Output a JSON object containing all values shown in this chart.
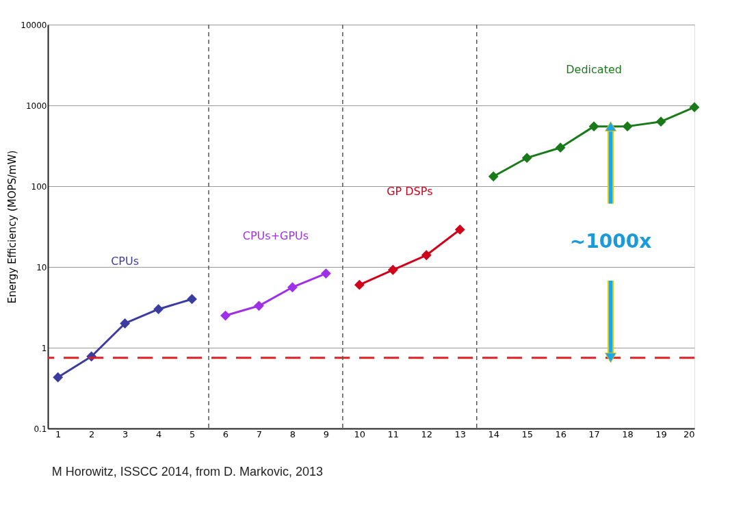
{
  "chart_data": {
    "type": "line",
    "ylabel": "Energy Efficiency (MOPS/mW)",
    "series": [
      {
        "name": "CPUs",
        "color": "#3c3ca0",
        "x": [
          1,
          2,
          3,
          4,
          5
        ],
        "values": [
          0.43,
          0.78,
          2,
          3,
          4
        ]
      },
      {
        "name": "CPUs+GPUs",
        "color": "#a030e8",
        "x": [
          6,
          7,
          8,
          9
        ],
        "values": [
          2.5,
          3.3,
          5.6,
          8.3
        ]
      },
      {
        "name": "GP DSPs",
        "color": "#d0021b",
        "x": [
          10,
          11,
          12,
          13
        ],
        "values": [
          6,
          9.2,
          14,
          29
        ]
      },
      {
        "name": "Dedicated",
        "color": "#1a7a1a",
        "x": [
          14,
          15,
          16,
          17,
          18,
          19,
          20
        ],
        "values": [
          132,
          224,
          300,
          550,
          550,
          630,
          950
        ]
      }
    ],
    "xlim": [
      0.7,
      20
    ],
    "xticks": [
      1,
      2,
      3,
      4,
      5,
      6,
      7,
      8,
      9,
      10,
      11,
      12,
      13,
      14,
      15,
      16,
      17,
      18,
      19,
      20
    ],
    "ylim": [
      0.1,
      10000
    ],
    "yticks": [
      0.1,
      1,
      10,
      100,
      1000,
      10000
    ],
    "log": "y",
    "grid": "y",
    "marker": "diamond",
    "line_style": "solid",
    "ref_lines": [
      {
        "axis": "y",
        "value": 0.75,
        "color": "#e02020",
        "line_style": "dashed"
      },
      {
        "axis": "x",
        "value": 5.5,
        "color": "#555555",
        "line_style": "dashed"
      },
      {
        "axis": "x",
        "value": 9.5,
        "color": "#555555",
        "line_style": "dashed"
      },
      {
        "axis": "x",
        "value": 13.5,
        "color": "#555555",
        "line_style": "dashed"
      }
    ],
    "annotations": [
      "~1000x",
      "M Horowitz, ISSCC 2014, from D. Markovic, 2013"
    ]
  }
}
